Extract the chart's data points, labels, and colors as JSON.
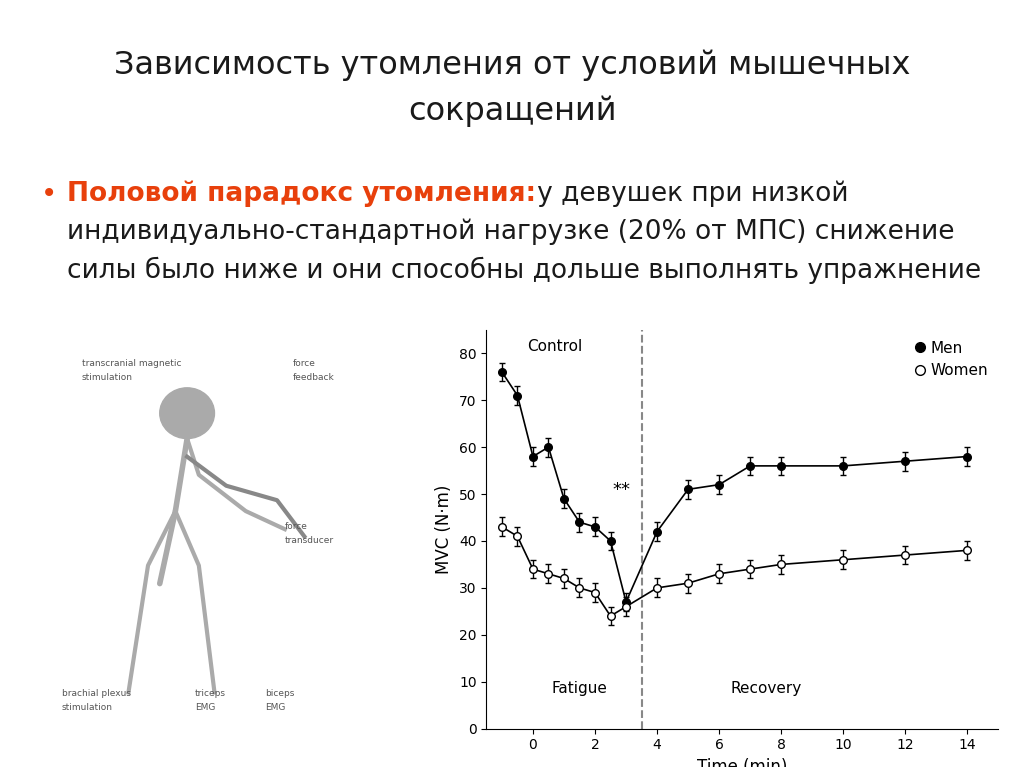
{
  "title_line1": "Зависимость утомления от условий мышечных",
  "title_line2": "сокращений",
  "bullet_orange": "Половой парадокс утомления:",
  "bullet_black_line1": "   у девушек при низкой",
  "bullet_black_line2": "индивидуально-стандартной нагрузке (20% от МПС) снижение",
  "bullet_black_line3": "силы было ниже и они способны дольше выполнять упражнение",
  "bg_color": "#ffffff",
  "title_color": "#1a1a1a",
  "bullet_orange_color": "#e8400c",
  "bullet_black_color": "#1a1a1a",
  "men_time": [
    -1,
    -0.5,
    0,
    0.5,
    1,
    1.5,
    2,
    2.5,
    3,
    4,
    5,
    6,
    7,
    8,
    10,
    12,
    14
  ],
  "men_mvc": [
    76,
    71,
    58,
    60,
    49,
    44,
    43,
    40,
    27,
    42,
    51,
    52,
    56,
    56,
    56,
    57,
    58
  ],
  "men_err": [
    2,
    2,
    2,
    2,
    2,
    2,
    2,
    2,
    2,
    2,
    2,
    2,
    2,
    2,
    2,
    2,
    2
  ],
  "women_time": [
    -1,
    -0.5,
    0,
    0.5,
    1,
    1.5,
    2,
    2.5,
    3,
    4,
    5,
    6,
    7,
    8,
    10,
    12,
    14
  ],
  "women_mvc": [
    43,
    41,
    34,
    33,
    32,
    30,
    29,
    24,
    26,
    30,
    31,
    33,
    34,
    35,
    36,
    37,
    38
  ],
  "women_err": [
    2,
    2,
    2,
    2,
    2,
    2,
    2,
    2,
    2,
    2,
    2,
    2,
    2,
    2,
    2,
    2,
    2
  ],
  "xlabel": "Time (min)",
  "ylabel": "MVC (N·m)",
  "ylim": [
    0,
    85
  ],
  "xlim": [
    -1.5,
    15
  ],
  "xticks": [
    0,
    2,
    4,
    6,
    8,
    10,
    12,
    14
  ],
  "yticks": [
    0,
    10,
    20,
    30,
    40,
    50,
    60,
    70,
    80
  ],
  "vline_x": 3.5,
  "control_label": "Control",
  "fatigue_label": "Fatigue",
  "recovery_label": "Recovery",
  "star_label": "**",
  "star_x": 2.55,
  "star_y": 49,
  "men_label": "Men",
  "women_label": "Women",
  "control_x": -0.2,
  "control_y": 83,
  "fatigue_x": 0.6,
  "fatigue_y": 7,
  "recovery_x": 7.5,
  "recovery_y": 7
}
